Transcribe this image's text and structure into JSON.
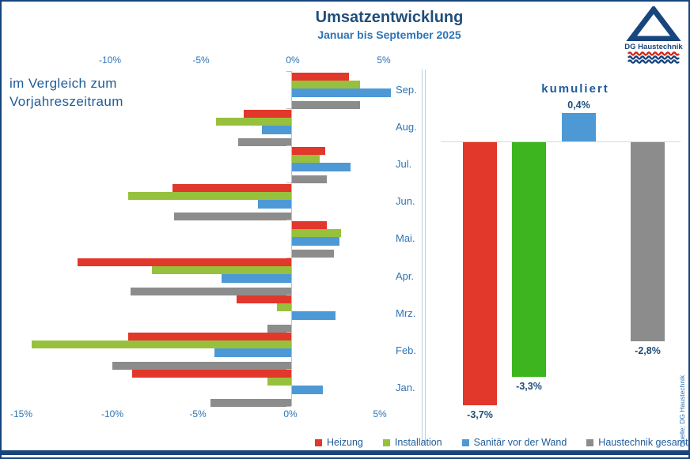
{
  "header": {
    "title": "Umsatzentwicklung",
    "subtitle": "Januar bis September 2025"
  },
  "note": {
    "line1": "im Vergleich zum",
    "line2": "Vorjahreszeitraum"
  },
  "logo": {
    "name": "DG Haustechnik"
  },
  "source": "Quelle: DG Haustechnik",
  "legend": [
    "Heizung",
    "Installation",
    "Sanitär vor der Wand",
    "Haustechnik gesamt"
  ],
  "colors": {
    "heizung_red": "#E2372B",
    "installation_green_light": "#97C13D",
    "installation_green_bright": "#3DB51F",
    "sanitaer_blue": "#4D99D6",
    "haustechnik_gray": "#8C8C8C",
    "frame_blue": "#17457E",
    "text_blue": "#2E74B5",
    "title_blue": "#1F4E79",
    "axis_gray": "#BFBFBF"
  },
  "chart_data": [
    {
      "type": "bar",
      "orientation": "horizontal",
      "title": "im Vergleich zum Vorjahreszeitraum",
      "unit": "%",
      "categories": [
        "Sep.",
        "Aug.",
        "Jul.",
        "Jun.",
        "Mai.",
        "Apr.",
        "Mrz.",
        "Feb.",
        "Jan."
      ],
      "series": [
        {
          "name": "Heizung",
          "color": "#E2372B",
          "values": [
            3.1,
            -2.6,
            1.8,
            -6.5,
            1.9,
            -11.7,
            -3.0,
            -8.9,
            -8.7
          ]
        },
        {
          "name": "Installation",
          "color": "#97C13D",
          "values": [
            3.7,
            -4.1,
            1.5,
            -8.9,
            2.7,
            -7.6,
            -0.8,
            -14.2,
            -1.3
          ]
        },
        {
          "name": "Sanitär vor der Wand",
          "color": "#4D99D6",
          "values": [
            5.4,
            -1.6,
            3.2,
            -1.8,
            2.6,
            -3.8,
            2.4,
            -4.2,
            1.7
          ]
        },
        {
          "name": "Haustechnik gesamt",
          "color": "#8C8C8C",
          "values": [
            3.7,
            -2.9,
            1.9,
            -6.4,
            2.3,
            -8.8,
            -1.3,
            -9.8,
            -4.4
          ]
        }
      ],
      "x_axis": {
        "top_ticks": [
          "-10%",
          "-5%",
          "0%",
          "5%"
        ],
        "bottom_ticks": [
          "-15%",
          "-10%",
          "-5%",
          "0%",
          "5%"
        ],
        "range": [
          -15,
          5
        ]
      },
      "grid": false,
      "legend_position": "bottom"
    },
    {
      "type": "bar",
      "orientation": "vertical",
      "title": "kumuliert",
      "categories": [
        "Heizung",
        "Installation",
        "Sanitär vor der Wand",
        "Haustechnik gesamt"
      ],
      "values": [
        -3.7,
        -3.3,
        0.4,
        -2.8
      ],
      "labels": [
        "-3,7%",
        "-3,3%",
        "0,4%",
        "-2,8%"
      ],
      "colors": [
        "#E2372B",
        "#3DB51F",
        "#4D99D6",
        "#8C8C8C"
      ],
      "ylim": [
        -4.2,
        0.8
      ]
    }
  ]
}
